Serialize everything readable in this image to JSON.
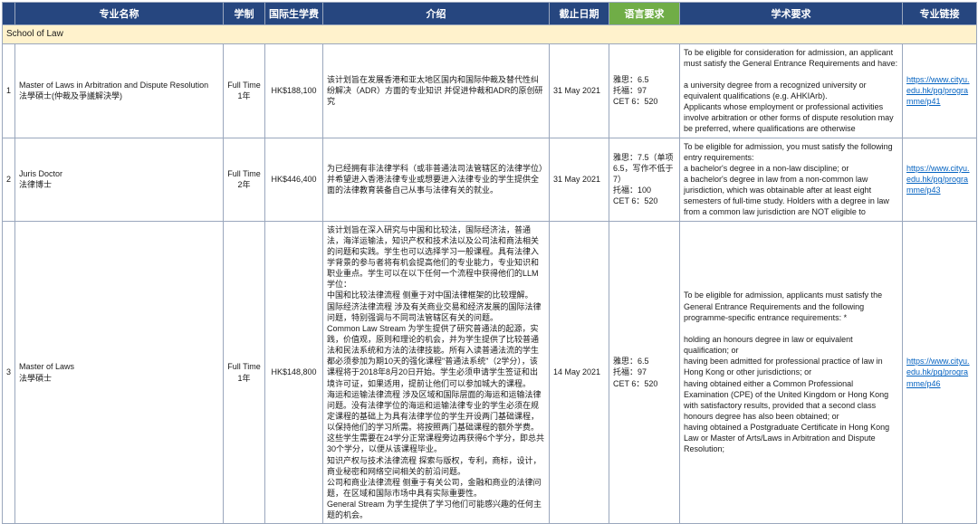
{
  "colors": {
    "header_bg": "#26467f",
    "header_text": "#ffffff",
    "lang_header_bg": "#70ad47",
    "section_bg": "#fff2cc",
    "border": "#9aa7bd",
    "link": "#0563c1",
    "text": "#1a1a1a",
    "page_bg": "#ffffff"
  },
  "columns": [
    "",
    "专业名称",
    "学制",
    "国际生学费",
    "介绍",
    "截止日期",
    "语言要求",
    "学术要求",
    "专业链接"
  ],
  "section": "School of Law",
  "rows": [
    {
      "num": "1",
      "name": "Master of Laws in Arbitration and Dispute Resolution\n法學碩士(仲裁及爭議解決學)",
      "duration": "Full Time\n1年",
      "fee": "HK$188,100",
      "intro": "该计划旨在发展香港和亚太地区国内和国际仲裁及替代性纠纷解决（ADR）方面的专业知识 并促进仲裁和ADR的原创研究",
      "deadline": "31 May 2021",
      "lang": "雅思：6.5\n托福：97\nCET 6：520",
      "academic": "To be eligible for consideration for admission, an applicant must satisfy the General Entrance Requirements and have:\n\na university degree from a recognized university or equivalent qualifications (e.g. AHKIArb).\nApplicants whose employment or professional activities involve arbitration or other forms of dispute resolution may be preferred, where qualifications are otherwise",
      "link": "https://www.cityu.edu.hk/pg/programme/p41"
    },
    {
      "num": "2",
      "name": "Juris Doctor\n法律博士",
      "duration": "Full Time\n2年",
      "fee": "HK$446,400",
      "intro": "为已经拥有非法律学科（或非普通法司法管辖区的法律学位）并希望进入香港法律专业或想要进入法律专业的学生提供全面的法律教育装备自己从事与法律有关的就业。",
      "deadline": "31 May 2021",
      "lang": "雅思：7.5（单项6.5，写作不低于7）\n托福：100\nCET 6：520",
      "academic": "To be eligible for admission, you must satisfy the following entry requirements:\na bachelor's degree in a non-law discipline; or\na bachelor's degree in law from a non-common law jurisdiction, which was obtainable after at least eight semesters of full-time study.  Holders with a degree in law from a common law jurisdiction are NOT eligible to",
      "link": "https://www.cityu.edu.hk/pg/programme/p43"
    },
    {
      "num": "3",
      "name": "Master of Laws\n法學碩士",
      "duration": "Full Time\n1年",
      "fee": "HK$148,800",
      "intro": "该计划旨在深入研究与中国和比较法，国际经济法，普通法，海洋运输法，知识产权和技术法以及公司法和商法相关的问题和实践。学生也可以选择学习一般课程。具有法律入学背景的参与者将有机会提高他们的专业能力，专业知识和职业重点。学生可以在以下任何一个流程中获得他们的LLM学位：\n中国和比较法律流程  侧重于对中国法律框架的比较理解。\n国际经济法律流程  涉及有关商业交易和经济发展的国际法律问题，特别强调与不同司法管辖区有关的问题。\nCommon Law Stream  为学生提供了研究普通法的起源，实践，价值观，原则和理论的机会，并为学生提供了比较普通法和民法系统和方法的法律技能。所有入读普通法流的学生都必须参加为期10天的强化课程\"普通法系统\"（2学分），该课程将于2018年8月20日开始。学生必须申请学生签证和出境许可证，如果适用，提前让他们可以参加城大的课程。\n海运和运输法律流程  涉及区域和国际层面的海运和运输法律问题。没有法律学位的海运和运输法律专业的学生必须在规定课程的基础上为具有法律学位的学生开设两门基础课程，以保持他们的学习所需。将按照两门基础课程的额外学费。这些学生需要在24学分正常课程旁边再获得6个学分，即总共30个学分，以便从该课程毕业。\n知识产权与技术法律流程  探索与版权，专利，商标，设计，商业秘密和网络空间相关的前沿问题。\n公司和商业法律流程  侧重于有关公司，金融和商业的法律问题，在区域和国际市场中具有实际重要性。\nGeneral Stream  为学生提供了学习他们可能感兴趣的任何主题的机会。",
      "deadline": "14 May 2021",
      "lang": "雅思：6.5\n托福：97\nCET 6：520",
      "academic": "To be eligible for admission, applicants must satisfy the General Entrance Requirements and the following programme-specific entrance requirements: *\n\nholding an honours degree in law or equivalent qualification; or\nhaving been admitted for professional practice of law in Hong Kong or other jurisdictions; or\nhaving obtained either a Common Professional Examination (CPE) of the United Kingdom or Hong Kong with satisfactory results, provided that a second class honours degree has also been obtained; or\nhaving obtained a Postgraduate Certificate in Hong Kong Law or Master of Arts/Laws in Arbitration and Dispute Resolution;",
      "link": "https://www.cityu.edu.hk/pg/programme/p46"
    }
  ]
}
